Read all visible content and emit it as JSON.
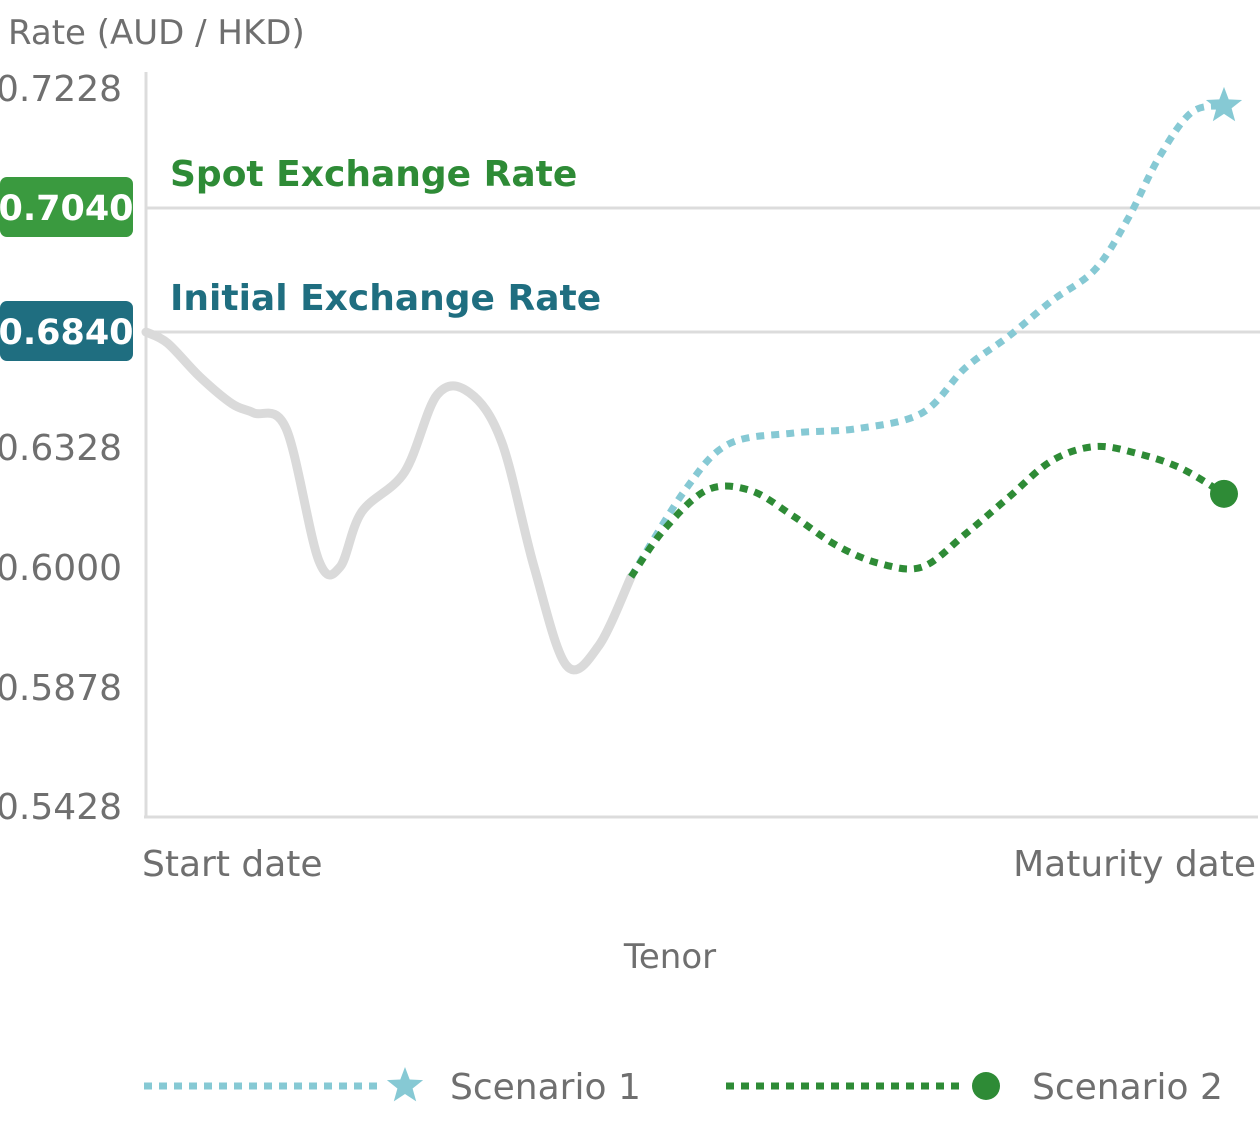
{
  "chart_data": {
    "type": "line",
    "ylabel": "Rate (AUD / HKD)",
    "xlabel": "Tenor",
    "categories": [
      "Start date",
      "Maturity date"
    ],
    "ylim": [
      0.5428,
      0.7228
    ],
    "y_ticks": [
      "0.7228",
      "0.6328",
      "0.6000",
      "0.5878",
      "0.5428"
    ],
    "reference_lines": [
      {
        "name": "Spot Exchange Rate",
        "value": 0.704,
        "label": "0.7040",
        "color": "#3a9a3f",
        "text_color": "#2e8b36"
      },
      {
        "name": "Initial Exchange Rate",
        "value": 0.684,
        "label": "0.6840",
        "color": "#1f6e80",
        "text_color": "#1f6e80"
      }
    ],
    "history": {
      "color": "#dadada",
      "x": [
        0,
        0.02,
        0.05,
        0.08,
        0.1,
        0.13,
        0.16,
        0.18,
        0.2,
        0.24,
        0.27,
        0.3,
        0.33,
        0.36,
        0.39,
        0.42,
        0.45
      ],
      "y": [
        0.684,
        0.679,
        0.664,
        0.652,
        0.648,
        0.641,
        0.602,
        0.6,
        0.615,
        0.626,
        0.656,
        0.657,
        0.635,
        0.6,
        0.59,
        0.592,
        0.599
      ]
    },
    "series": [
      {
        "name": "Scenario 1",
        "color": "#86c9d4",
        "marker": "star",
        "x": [
          0.45,
          0.5,
          0.54,
          0.6,
          0.66,
          0.72,
          0.76,
          0.8,
          0.84,
          0.88,
          0.91,
          0.94,
          0.97,
          1.0
        ],
        "y": [
          0.599,
          0.621,
          0.634,
          0.639,
          0.641,
          0.648,
          0.668,
          0.682,
          0.689,
          0.694,
          0.702,
          0.712,
          0.719,
          0.72
        ]
      },
      {
        "name": "Scenario 2",
        "color": "#2e8b36",
        "marker": "circle",
        "x": [
          0.45,
          0.48,
          0.52,
          0.56,
          0.6,
          0.64,
          0.68,
          0.72,
          0.76,
          0.8,
          0.84,
          0.88,
          0.92,
          0.96,
          1.0
        ],
        "y": [
          0.599,
          0.61,
          0.621,
          0.621,
          0.614,
          0.606,
          0.601,
          0.6,
          0.609,
          0.619,
          0.629,
          0.633,
          0.631,
          0.627,
          0.62
        ]
      }
    ],
    "legend_position": "bottom",
    "grid": false
  }
}
